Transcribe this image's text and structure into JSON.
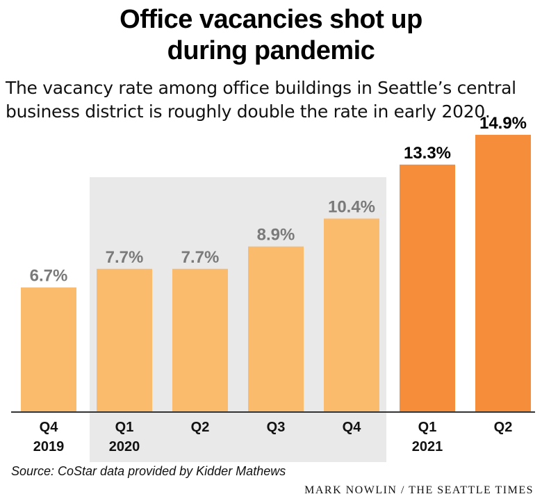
{
  "chart_data": {
    "type": "bar",
    "title": "Office vacancies shot up during pandemic",
    "subtitle": "The vacancy rate among office buildings in Seattle’s central business district is roughly double the rate in early 2020.",
    "categories": [
      "Q4 2019",
      "Q1 2020",
      "Q2",
      "Q3",
      "Q4",
      "Q1 2021",
      "Q2"
    ],
    "tick_labels": [
      {
        "quarter": "Q4",
        "year": "2019"
      },
      {
        "quarter": "Q1",
        "year": "2020"
      },
      {
        "quarter": "Q2",
        "year": ""
      },
      {
        "quarter": "Q3",
        "year": ""
      },
      {
        "quarter": "Q4",
        "year": ""
      },
      {
        "quarter": "Q1",
        "year": "2021"
      },
      {
        "quarter": "Q2",
        "year": ""
      }
    ],
    "values": [
      6.7,
      7.7,
      7.7,
      8.9,
      10.4,
      13.3,
      14.9
    ],
    "data_labels": [
      "6.7%",
      "7.7%",
      "7.7%",
      "8.9%",
      "10.4%",
      "13.3%",
      "14.9%"
    ],
    "ylim": [
      0,
      15.2
    ],
    "highlight_band": {
      "from_index": 1,
      "to_index": 4,
      "color": "#e9e9ea"
    },
    "colors": {
      "light_bar": "#fbbb6c",
      "dark_bar": "#f68d3a",
      "light_label": "#7a7a7a",
      "dark_label": "#000000",
      "axis": "#333333"
    },
    "dark_from_index": 5,
    "grid": false,
    "legend": "none"
  },
  "footer": {
    "source": "Source: CoStar data provided by Kidder Mathews",
    "credit": "MARK NOWLIN / THE SEATTLE TIMES"
  }
}
